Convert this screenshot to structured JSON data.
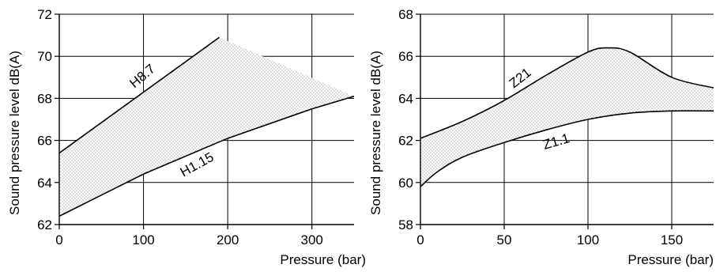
{
  "chart_data": [
    {
      "type": "area",
      "title": "",
      "xlabel": "Pressure (bar)",
      "ylabel": "Sound pressure level dB(A)",
      "xlim": [
        0,
        350
      ],
      "ylim": [
        62,
        72
      ],
      "x_ticks": [
        0,
        100,
        200,
        300
      ],
      "y_ticks": [
        62,
        64,
        66,
        68,
        70,
        72
      ],
      "grid": true,
      "colors": {
        "line": "#000000",
        "hatch": "#555555",
        "grid": "#000000"
      },
      "series": [
        {
          "name": "H8.7",
          "x": [
            0,
            190,
            350
          ],
          "y": [
            65.4,
            70.9,
            68.1
          ]
        },
        {
          "name": "H1.15",
          "x": [
            0,
            100,
            200,
            300,
            350
          ],
          "y": [
            62.4,
            64.4,
            66.1,
            67.5,
            68.1
          ]
        }
      ]
    },
    {
      "type": "area",
      "title": "",
      "xlabel": "Pressure (bar)",
      "ylabel": "Sound pressure level dB(A)",
      "xlim": [
        0,
        175
      ],
      "ylim": [
        58,
        68
      ],
      "x_ticks": [
        0,
        50,
        100,
        150
      ],
      "y_ticks": [
        58,
        60,
        62,
        64,
        66,
        68
      ],
      "grid": true,
      "colors": {
        "line": "#000000",
        "hatch": "#555555",
        "grid": "#000000"
      },
      "series": [
        {
          "name": "Z21",
          "x": [
            0,
            25,
            50,
            75,
            100,
            112,
            125,
            150,
            175
          ],
          "y": [
            62.1,
            62.9,
            63.9,
            65.1,
            66.2,
            66.4,
            66.2,
            65.0,
            64.5
          ]
        },
        {
          "name": "Z1.1",
          "x": [
            0,
            10,
            25,
            50,
            75,
            100,
            125,
            150,
            175
          ],
          "y": [
            59.8,
            60.5,
            61.2,
            61.9,
            62.5,
            63.0,
            63.3,
            63.4,
            63.4
          ]
        }
      ]
    }
  ]
}
